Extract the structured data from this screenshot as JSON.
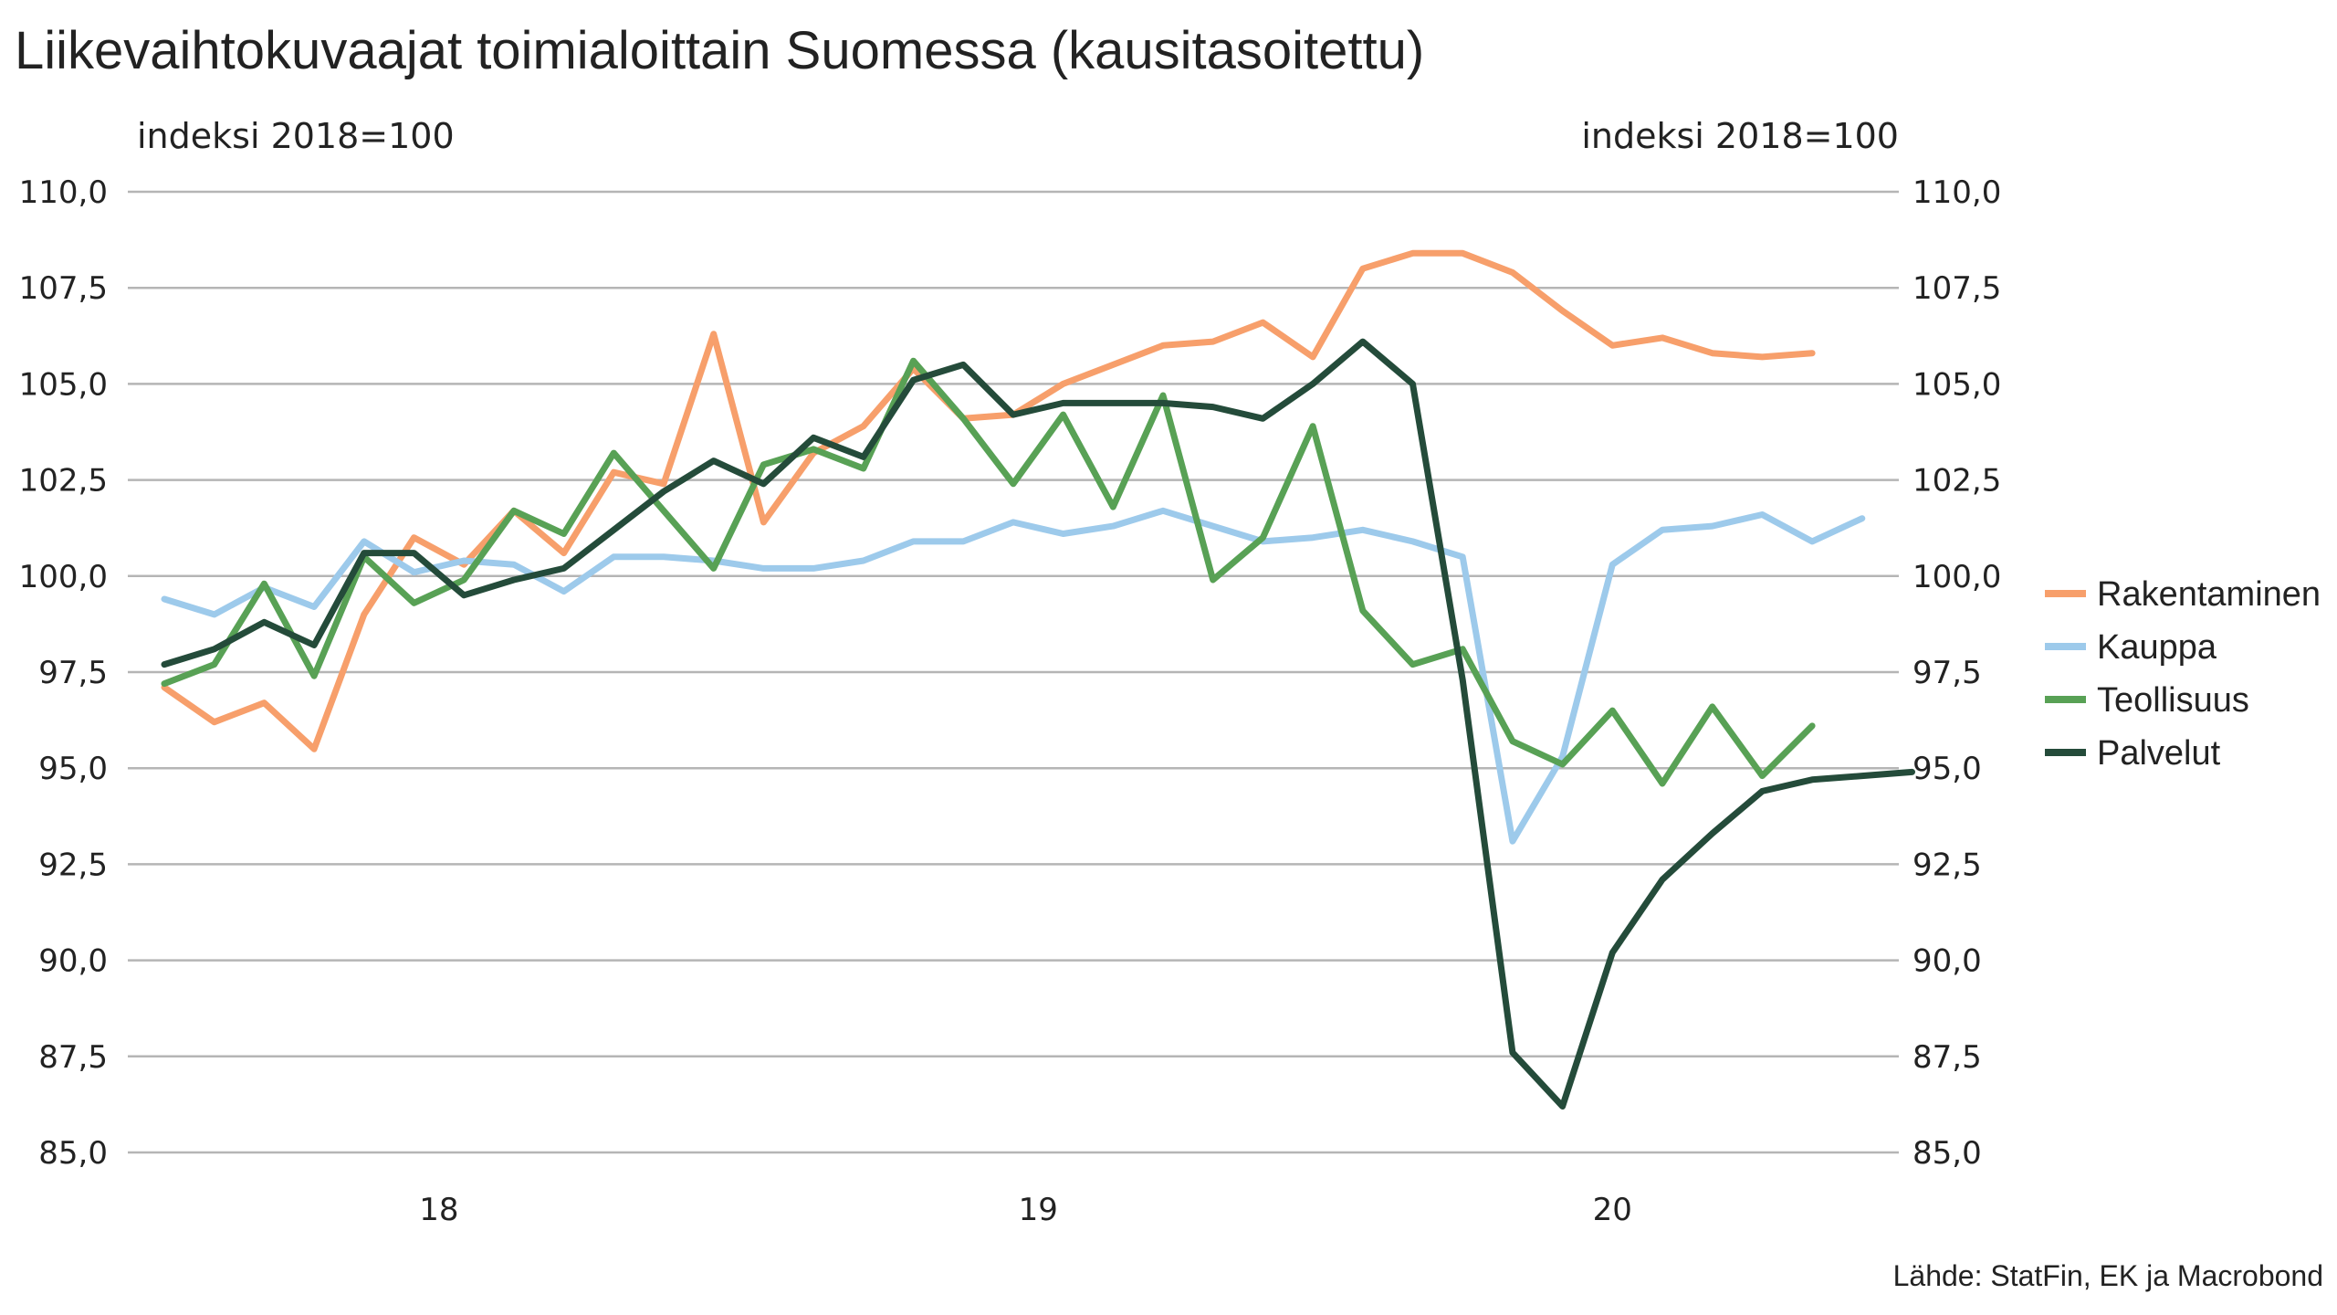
{
  "chart_data": {
    "type": "line",
    "title": "Liikevaihtokuvaajat toimialoittain Suomessa (kausitasoitettu)",
    "ylabel_left": "indeksi 2018=100",
    "ylabel_right": "indeksi 2018=100",
    "ylim": [
      85,
      110
    ],
    "yticks": [
      "85,0",
      "87,5",
      "90,0",
      "92,5",
      "95,0",
      "97,5",
      "100,0",
      "102,5",
      "105,0",
      "107,5",
      "110,0"
    ],
    "ytick_values": [
      85,
      87.5,
      90,
      92.5,
      95,
      97.5,
      100,
      102.5,
      105,
      107.5,
      110
    ],
    "xlabels": [
      {
        "label": "18",
        "month_index": 5.5
      },
      {
        "label": "19",
        "month_index": 17.5
      },
      {
        "label": "20",
        "month_index": 29
      }
    ],
    "x_start_label": "2018-01",
    "grid": true,
    "legend_position": "right",
    "source": "Lähde: StatFin, EK ja Macrobond",
    "series": [
      {
        "name": "Rakentaminen",
        "color": "#F79F6B",
        "values": [
          97.1,
          96.2,
          96.7,
          95.5,
          99.0,
          101.0,
          100.3,
          101.7,
          100.6,
          102.7,
          102.4,
          106.3,
          101.4,
          103.2,
          103.9,
          105.4,
          104.1,
          104.2,
          105.0,
          105.5,
          106.0,
          106.1,
          106.6,
          105.7,
          108.0,
          108.4,
          108.4,
          107.9,
          106.9,
          106.0,
          106.2,
          105.8,
          105.7,
          105.8
        ]
      },
      {
        "name": "Kauppa",
        "color": "#9DCAEB",
        "values": [
          99.4,
          99.0,
          99.7,
          99.2,
          100.9,
          100.1,
          100.4,
          100.3,
          99.6,
          100.5,
          100.5,
          100.4,
          100.2,
          100.2,
          100.4,
          100.9,
          100.9,
          101.4,
          101.1,
          101.3,
          101.7,
          101.3,
          100.9,
          101.0,
          101.2,
          100.9,
          100.5,
          93.1,
          95.3,
          100.3,
          101.2,
          101.3,
          101.6,
          100.9,
          101.5
        ]
      },
      {
        "name": "Teollisuus",
        "color": "#58A155",
        "values": [
          97.2,
          97.7,
          99.8,
          97.4,
          100.5,
          99.3,
          99.9,
          101.7,
          101.1,
          103.2,
          101.7,
          100.2,
          102.9,
          103.3,
          102.8,
          105.6,
          104.1,
          102.4,
          104.2,
          101.8,
          104.7,
          99.9,
          101.0,
          103.9,
          99.1,
          97.7,
          98.1,
          95.7,
          95.1,
          96.5,
          94.6,
          96.6,
          94.8,
          96.1
        ]
      },
      {
        "name": "Palvelut",
        "color": "#244B3A",
        "values": [
          97.7,
          98.1,
          98.8,
          98.2,
          100.6,
          100.6,
          99.5,
          99.9,
          100.2,
          101.2,
          102.2,
          103.0,
          102.4,
          103.6,
          103.1,
          105.1,
          105.5,
          104.2,
          104.5,
          104.5,
          104.5,
          104.4,
          104.1,
          105.0,
          106.1,
          105.0,
          97.3,
          87.6,
          86.2,
          90.2,
          92.1,
          93.3,
          94.4,
          94.7,
          94.8,
          94.9
        ]
      }
    ]
  }
}
